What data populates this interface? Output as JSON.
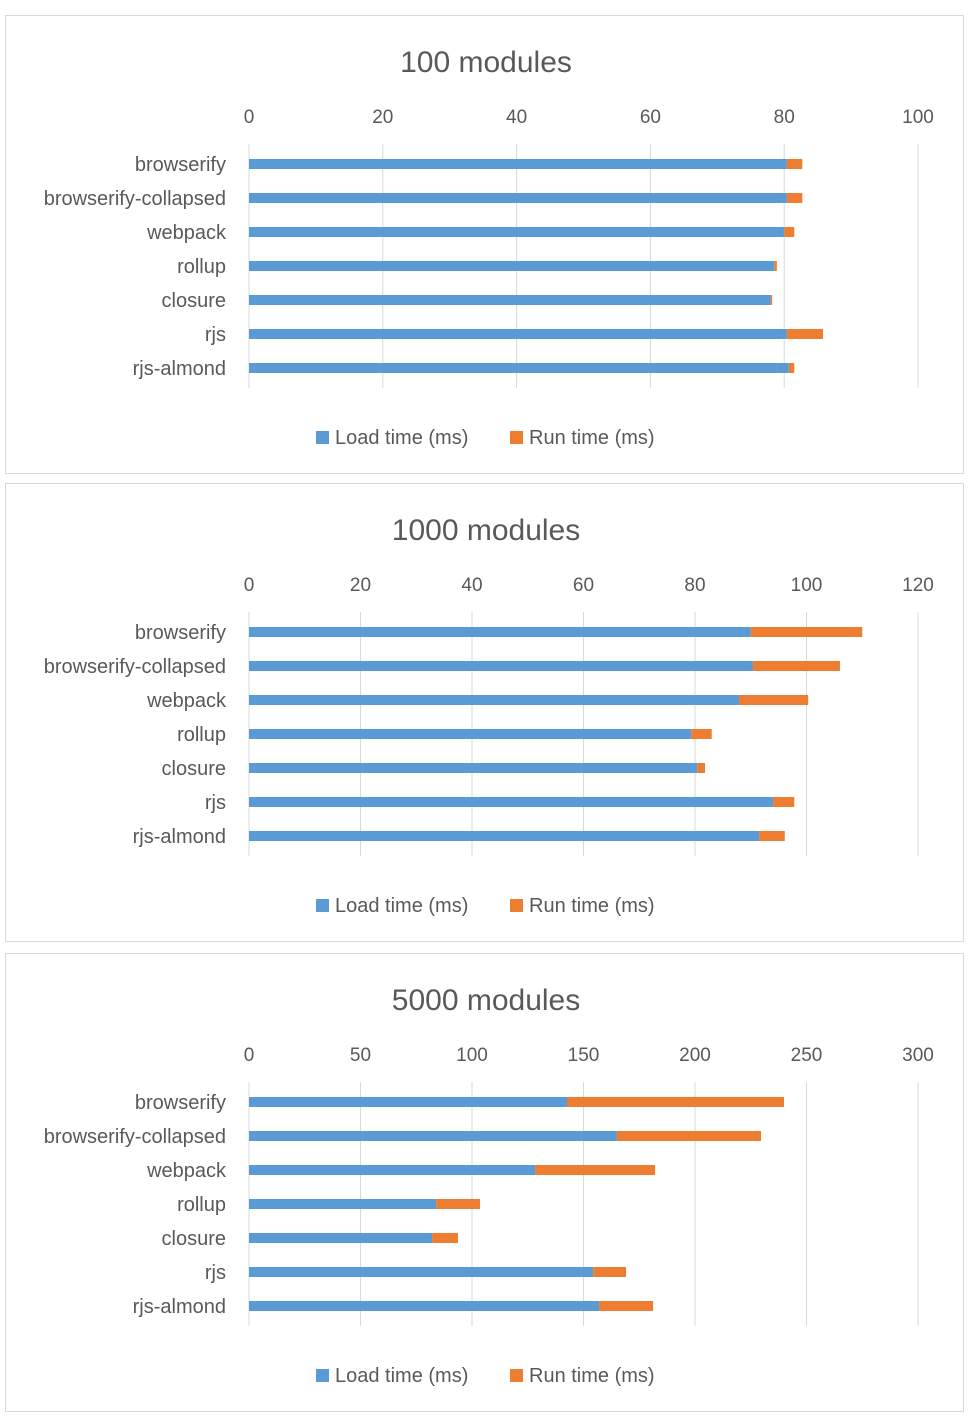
{
  "chart_data": [
    {
      "type": "bar",
      "orientation": "horizontal",
      "stacked": true,
      "title": "100 modules",
      "categories": [
        "browserify",
        "browserify-collapsed",
        "webpack",
        "rollup",
        "closure",
        "rjs",
        "rjs-almond"
      ],
      "xlim": [
        0,
        100
      ],
      "ticks": [
        0,
        20,
        40,
        60,
        80,
        100
      ],
      "grid": true,
      "legend": "bottom",
      "series": [
        {
          "name": "Load time (ms)",
          "color": "#5B9BD5",
          "values": [
            80.4,
            80.4,
            80.0,
            78.5,
            78.0,
            80.4,
            80.7
          ]
        },
        {
          "name": "Run time (ms)",
          "color": "#ED7D31",
          "values": [
            2.3,
            2.3,
            1.5,
            0.4,
            0.2,
            5.4,
            0.8
          ]
        }
      ]
    },
    {
      "type": "bar",
      "orientation": "horizontal",
      "stacked": true,
      "title": "1000 modules",
      "categories": [
        "browserify",
        "browserify-collapsed",
        "webpack",
        "rollup",
        "closure",
        "rjs",
        "rjs-almond"
      ],
      "xlim": [
        0,
        120
      ],
      "ticks": [
        0,
        20,
        40,
        60,
        80,
        100,
        120
      ],
      "grid": true,
      "legend": "bottom",
      "series": [
        {
          "name": "Load time (ms)",
          "color": "#5B9BD5",
          "values": [
            90.0,
            90.4,
            87.9,
            79.3,
            80.4,
            94.0,
            91.5
          ]
        },
        {
          "name": "Run time (ms)",
          "color": "#ED7D31",
          "values": [
            20.0,
            15.6,
            12.4,
            3.7,
            1.4,
            3.8,
            4.6
          ]
        }
      ]
    },
    {
      "type": "bar",
      "orientation": "horizontal",
      "stacked": true,
      "title": "5000 modules",
      "categories": [
        "browserify",
        "browserify-collapsed",
        "webpack",
        "rollup",
        "closure",
        "rjs",
        "rjs-almond"
      ],
      "xlim": [
        0,
        300
      ],
      "ticks": [
        0,
        50,
        100,
        150,
        200,
        250,
        300
      ],
      "grid": true,
      "legend": "bottom",
      "series": [
        {
          "name": "Load time (ms)",
          "color": "#5B9BD5",
          "values": [
            142.6,
            165.0,
            128.3,
            83.9,
            82.1,
            154.3,
            157.0
          ]
        },
        {
          "name": "Run time (ms)",
          "color": "#ED7D31",
          "values": [
            97.3,
            64.6,
            53.8,
            19.7,
            11.6,
            14.8,
            24.2
          ]
        }
      ]
    }
  ]
}
